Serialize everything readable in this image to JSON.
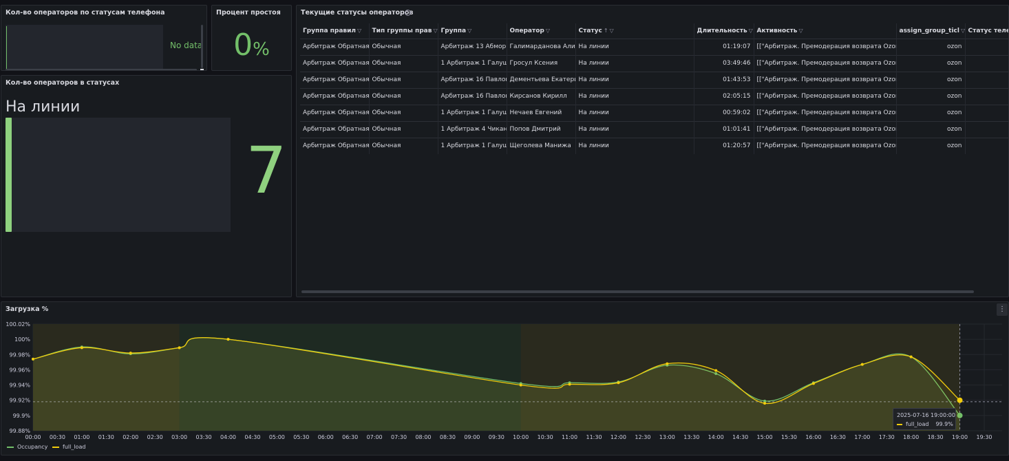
{
  "panel_phone": {
    "title": "Кол-во операторов по статусам телефона",
    "no_data": "No data"
  },
  "panel_idle": {
    "title": "Процент простоя",
    "value": "0",
    "unit": "%"
  },
  "panel_states": {
    "title": "Кол-во операторов в статусах",
    "state": "На линии",
    "value": "7"
  },
  "panel_table": {
    "title": "Текущие статусы операторов",
    "columns": [
      "Группа правил",
      "Тип группы прав",
      "Группа",
      "Оператор",
      "Статус",
      "Длительность",
      "Активность",
      "assign_group_ticl",
      "Статус теле"
    ],
    "rows": [
      [
        "Арбитраж Обратная",
        "Обычная",
        "Арбитраж 13 Абморш",
        "Галимарданова Алина",
        "На линии",
        "01:19:07",
        "[[\"Арбитраж. Премодерация возврата Ozon",
        "ozon",
        ""
      ],
      [
        "Арбитраж Обратная",
        "Обычная",
        "1 Арбитраж 1 Галушк",
        "Гросул Ксения",
        "На линии",
        "03:49:46",
        "[[\"Арбитраж. Премодерация возврата Ozon",
        "ozon",
        ""
      ],
      [
        "Арбитраж Обратная",
        "Обычная",
        "Арбитраж 16 Павлов",
        "Дементьева Екатерина",
        "На линии",
        "01:43:53",
        "[[\"Арбитраж. Премодерация возврата Ozon",
        "ozon",
        ""
      ],
      [
        "Арбитраж Обратная",
        "Обычная",
        "Арбитраж 16 Павлов",
        "Кирсанов Кирилл",
        "На линии",
        "02:05:15",
        "[[\"Арбитраж. Премодерация возврата Ozon",
        "ozon",
        ""
      ],
      [
        "Арбитраж Обратная",
        "Обычная",
        "1 Арбитраж 1 Галушк",
        "Нечаев Евгений",
        "На линии",
        "00:59:02",
        "[[\"Арбитраж. Премодерация возврата Ozon",
        "ozon",
        ""
      ],
      [
        "Арбитраж Обратная",
        "Обычная",
        "1 Арбитраж 4 Чиканс",
        "Попов Дмитрий",
        "На линии",
        "01:01:41",
        "[[\"Арбитраж. Премодерация возврата Ozon",
        "ozon",
        ""
      ],
      [
        "Арбитраж Обратная",
        "Обычная",
        "1 Арбитраж 1 Галушк",
        "Щеголева Манижа",
        "На линии",
        "01:20:57",
        "[[\"Арбитраж. Премодерация возврата Ozon",
        "ozon",
        ""
      ]
    ],
    "sort_indicator": "↑"
  },
  "panel_load": {
    "title": "Загрузка %",
    "tooltip": {
      "time": "2025-07-16 19:00:00",
      "series": "full_load",
      "value": "99.9%"
    }
  },
  "chart_data": {
    "type": "line",
    "title": "Загрузка %",
    "x": [
      "00:00",
      "00:30",
      "01:00",
      "01:30",
      "02:00",
      "02:30",
      "03:00",
      "03:30",
      "04:00",
      "04:30",
      "05:00",
      "05:30",
      "06:00",
      "06:30",
      "07:00",
      "07:30",
      "08:00",
      "08:30",
      "09:00",
      "09:30",
      "10:00",
      "10:30",
      "11:00",
      "11:30",
      "12:00",
      "12:30",
      "13:00",
      "13:30",
      "14:00",
      "14:30",
      "15:00",
      "15:30",
      "16:00",
      "16:30",
      "17:00",
      "17:30",
      "18:00",
      "18:30",
      "19:00",
      "19:30"
    ],
    "y_ticks": [
      "99.88%",
      "99.9%",
      "99.92%",
      "99.94%",
      "99.96%",
      "99.98%",
      "100%",
      "100.02%"
    ],
    "ylim": [
      99.88,
      100.02
    ],
    "threshold": 99.918,
    "series": [
      {
        "name": "Occupancy",
        "color": "#73bf69",
        "points": [
          [
            "00:00",
            99.974
          ],
          [
            "01:00",
            99.99
          ],
          [
            "02:00",
            99.981
          ],
          [
            "03:00",
            99.989
          ],
          [
            "04:00",
            100.0
          ],
          [
            "10:00",
            99.942
          ],
          [
            "11:00",
            99.943
          ],
          [
            "12:00",
            99.944
          ],
          [
            "13:00",
            99.966
          ],
          [
            "14:00",
            99.955
          ],
          [
            "15:00",
            99.919
          ],
          [
            "16:00",
            99.943
          ],
          [
            "17:00",
            99.967
          ],
          [
            "18:00",
            99.977
          ],
          [
            "19:00",
            99.9
          ]
        ]
      },
      {
        "name": "full_load",
        "color": "#f2cc0c",
        "points": [
          [
            "00:00",
            99.974
          ],
          [
            "01:00",
            99.989
          ],
          [
            "02:00",
            99.982
          ],
          [
            "03:00",
            99.989
          ],
          [
            "04:00",
            100.0
          ],
          [
            "10:00",
            99.94
          ],
          [
            "11:00",
            99.941
          ],
          [
            "12:00",
            99.943
          ],
          [
            "13:00",
            99.968
          ],
          [
            "14:00",
            99.959
          ],
          [
            "15:00",
            99.916
          ],
          [
            "16:00",
            99.942
          ],
          [
            "17:00",
            99.967
          ],
          [
            "18:00",
            99.977
          ],
          [
            "19:00",
            99.92
          ]
        ]
      }
    ],
    "legend": [
      "Occupancy",
      "full_load"
    ],
    "legend_position": "bottom-left",
    "grid": true
  }
}
